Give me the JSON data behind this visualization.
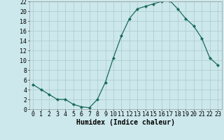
{
  "x": [
    0,
    1,
    2,
    3,
    4,
    5,
    6,
    7,
    8,
    9,
    10,
    11,
    12,
    13,
    14,
    15,
    16,
    17,
    18,
    19,
    20,
    21,
    22,
    23
  ],
  "y": [
    5,
    4,
    3,
    2,
    2,
    1,
    0.5,
    0.3,
    2,
    5.5,
    10.5,
    15,
    18.5,
    20.5,
    21,
    21.5,
    22,
    22.2,
    20.5,
    18.5,
    17,
    14.5,
    10.5,
    9
  ],
  "line_color": "#1a6b5a",
  "marker": "D",
  "marker_size": 2.0,
  "bg_color": "#cce8ec",
  "grid_color": "#b0cdd0",
  "xlabel": "Humidex (Indice chaleur)",
  "xlim": [
    -0.5,
    23.5
  ],
  "ylim": [
    0,
    22
  ],
  "xticks": [
    0,
    1,
    2,
    3,
    4,
    5,
    6,
    7,
    8,
    9,
    10,
    11,
    12,
    13,
    14,
    15,
    16,
    17,
    18,
    19,
    20,
    21,
    22,
    23
  ],
  "yticks": [
    0,
    2,
    4,
    6,
    8,
    10,
    12,
    14,
    16,
    18,
    20,
    22
  ],
  "label_fontsize": 7,
  "tick_fontsize": 6
}
